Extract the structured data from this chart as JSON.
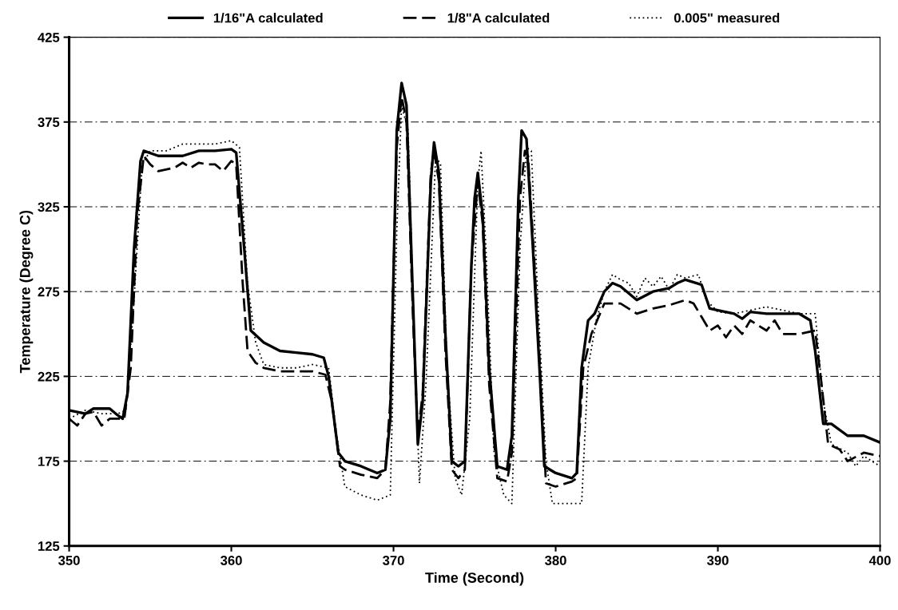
{
  "chart_data": {
    "type": "line",
    "xlabel": "Time (Second)",
    "ylabel": "Temperature (Degree C)",
    "xlim": [
      350,
      400
    ],
    "xticks": [
      350,
      360,
      370,
      380,
      390,
      400
    ],
    "ylim": [
      125,
      425
    ],
    "yticks": [
      125,
      175,
      225,
      275,
      325,
      375,
      425
    ],
    "grid": "y",
    "legend": "top",
    "marker": "none",
    "series": [
      {
        "name": "1/16\"A calculated",
        "color": "#000000",
        "line_style": "solid",
        "x": [
          350,
          351,
          351.5,
          352.5,
          353,
          353.3,
          353.6,
          354,
          354.4,
          354.6,
          355.5,
          357,
          358,
          359,
          360,
          360.3,
          360.8,
          361.2,
          362,
          363,
          364,
          365,
          365.7,
          366,
          366.6,
          367,
          368,
          369,
          369.5,
          369.8,
          370.2,
          370.5,
          370.8,
          371.2,
          371.5,
          371.8,
          372.3,
          372.5,
          372.8,
          373.2,
          373.6,
          374,
          374.4,
          374.8,
          375,
          375.2,
          375.5,
          375.9,
          376.4,
          377,
          377.3,
          377.7,
          377.9,
          378.2,
          378.6,
          379,
          379.3,
          380,
          381,
          381.3,
          381.6,
          382,
          382.4,
          383,
          383.5,
          384,
          385,
          386,
          387,
          387.5,
          388,
          389,
          389.5,
          390,
          391,
          391.5,
          392,
          393,
          394,
          395,
          395.7,
          396,
          396.5,
          397,
          398,
          399,
          400
        ],
        "values": [
          205,
          203,
          206,
          206,
          202,
          200,
          215,
          300,
          352,
          358,
          355,
          355,
          358,
          358,
          359,
          357,
          300,
          252,
          245,
          240,
          239,
          238,
          236,
          225,
          180,
          175,
          172,
          168,
          170,
          200,
          370,
          398,
          385,
          270,
          185,
          210,
          340,
          363,
          345,
          250,
          175,
          172,
          175,
          290,
          330,
          345,
          320,
          230,
          172,
          170,
          190,
          330,
          370,
          365,
          300,
          230,
          172,
          168,
          165,
          168,
          230,
          258,
          262,
          275,
          280,
          278,
          270,
          275,
          277,
          280,
          282,
          279,
          265,
          264,
          262,
          259,
          263,
          262,
          262,
          262,
          258,
          240,
          197,
          197,
          190,
          190,
          186
        ]
      },
      {
        "name": "1/8\"A calculated",
        "color": "#000000",
        "line_style": "dashed",
        "x": [
          350,
          350.5,
          351,
          351.5,
          352,
          352.5,
          353,
          353.4,
          353.8,
          354.2,
          354.6,
          355,
          355.5,
          356.5,
          357,
          357.5,
          358,
          358.5,
          359,
          359.5,
          360,
          360.3,
          360.7,
          361,
          361.5,
          362,
          363,
          364,
          365,
          365.8,
          366.2,
          366.7,
          367,
          368,
          369,
          369.5,
          369.8,
          370.2,
          370.5,
          370.8,
          371.2,
          371.5,
          371.8,
          372.3,
          372.5,
          372.8,
          373.2,
          373.6,
          374,
          374.4,
          374.8,
          375.2,
          375.5,
          375.9,
          376.4,
          377,
          377.3,
          377.8,
          378.1,
          378.3,
          378.7,
          379.2,
          379.4,
          380,
          381,
          381.3,
          381.7,
          382.2,
          383,
          384,
          385,
          386,
          387,
          388,
          388.5,
          389,
          389.5,
          390,
          390.5,
          391,
          391.5,
          392,
          392.5,
          393,
          393.5,
          394,
          395,
          396,
          396.4,
          396.8,
          397.5,
          398,
          399,
          400
        ],
        "values": [
          200,
          196,
          203,
          204,
          196,
          200,
          200,
          200,
          230,
          320,
          355,
          350,
          346,
          348,
          351,
          348,
          351,
          350,
          350,
          346,
          352,
          350,
          280,
          240,
          233,
          230,
          228,
          228,
          228,
          226,
          210,
          172,
          170,
          167,
          165,
          170,
          210,
          360,
          390,
          375,
          260,
          190,
          215,
          345,
          358,
          340,
          240,
          170,
          165,
          170,
          290,
          340,
          315,
          220,
          165,
          163,
          180,
          330,
          358,
          355,
          290,
          200,
          162,
          160,
          163,
          165,
          230,
          250,
          268,
          268,
          262,
          265,
          267,
          270,
          268,
          260,
          252,
          255,
          248,
          255,
          250,
          258,
          255,
          252,
          258,
          250,
          250,
          252,
          220,
          185,
          182,
          175,
          180,
          178
        ]
      },
      {
        "name": "0.005\" measured",
        "color": "#000000",
        "line_style": "dotted",
        "x": [
          350,
          351,
          352,
          353,
          353.5,
          354,
          354.5,
          355,
          356,
          357,
          358,
          359,
          360,
          360.5,
          361,
          361.5,
          362,
          363,
          364,
          365,
          366,
          366.5,
          367,
          368,
          369,
          369.8,
          370.2,
          370.5,
          370.9,
          371.3,
          371.6,
          372,
          372.6,
          372.9,
          373.3,
          373.8,
          374.2,
          374.7,
          375.2,
          375.4,
          375.7,
          376.2,
          376.8,
          377.3,
          377.8,
          378.2,
          378.5,
          378.9,
          379.4,
          379.8,
          381,
          381.6,
          382,
          382.5,
          383,
          383.5,
          384,
          384.5,
          385,
          385.5,
          386,
          386.5,
          387,
          387.5,
          388,
          388.8,
          389.3,
          390,
          391,
          392,
          393,
          394,
          395,
          396,
          396.5,
          397,
          398,
          398.5,
          399,
          400
        ],
        "values": [
          200,
          205,
          203,
          203,
          205,
          270,
          350,
          358,
          358,
          362,
          362,
          362,
          364,
          360,
          280,
          245,
          232,
          230,
          230,
          232,
          230,
          190,
          160,
          155,
          152,
          155,
          310,
          385,
          370,
          240,
          162,
          220,
          355,
          350,
          230,
          165,
          155,
          200,
          340,
          358,
          300,
          180,
          155,
          150,
          300,
          360,
          358,
          270,
          175,
          150,
          150,
          150,
          230,
          258,
          275,
          285,
          282,
          280,
          272,
          283,
          278,
          284,
          276,
          285,
          283,
          285,
          270,
          263,
          262,
          264,
          266,
          264,
          262,
          262,
          210,
          185,
          180,
          172,
          178,
          172
        ]
      }
    ]
  }
}
